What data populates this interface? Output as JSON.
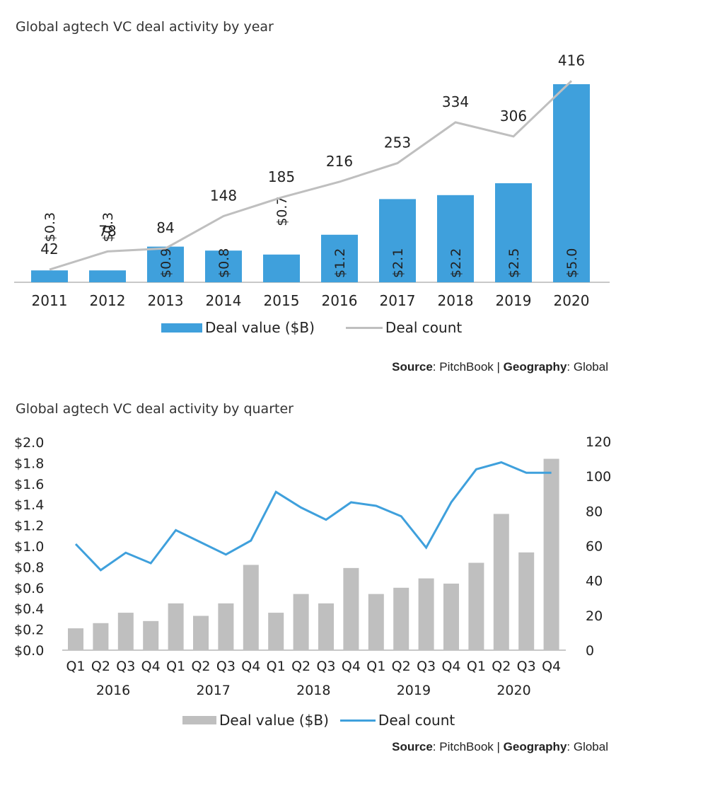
{
  "charts": {
    "annual": {
      "title": "Global agtech VC deal activity by year",
      "legend_value": "Deal value ($B)",
      "legend_count": "Deal count",
      "source_label": "Source",
      "source_value": ": PitchBook | ",
      "geo_label": "Geography",
      "geo_value": ": Global",
      "bar_color": "#3fa0dc",
      "line_color": "#bfbfbf"
    },
    "quarterly": {
      "title": "Global agtech VC deal activity by quarter",
      "legend_value": "Deal value ($B)",
      "legend_count": "Deal count",
      "source_label": "Source",
      "source_value": ": PitchBook | ",
      "geo_label": "Geography",
      "geo_value": ": Global",
      "bar_color": "#bfbfbf",
      "line_color": "#3fa0dc"
    }
  },
  "chart_data": [
    {
      "type": "bar",
      "title": "Global agtech VC deal activity by year",
      "categories": [
        "2011",
        "2012",
        "2013",
        "2014",
        "2015",
        "2016",
        "2017",
        "2018",
        "2019",
        "2020"
      ],
      "series": [
        {
          "name": "Deal value ($B)",
          "type": "bar",
          "values": [
            0.3,
            0.3,
            0.9,
            0.8,
            0.7,
            1.2,
            2.1,
            2.2,
            2.5,
            5.0
          ],
          "labels": [
            "$0.3",
            "$0.3",
            "$0.9",
            "$0.8",
            "$0.7",
            "$1.2",
            "$2.1",
            "$2.2",
            "$2.5",
            "$5.0"
          ]
        },
        {
          "name": "Deal count",
          "type": "line",
          "values": [
            42,
            78,
            84,
            148,
            185,
            216,
            253,
            334,
            306,
            416
          ]
        }
      ],
      "legend": "bottom"
    },
    {
      "type": "bar",
      "title": "Global agtech VC deal activity by quarter",
      "quarters": [
        "Q1",
        "Q2",
        "Q3",
        "Q4",
        "Q1",
        "Q2",
        "Q3",
        "Q4",
        "Q1",
        "Q2",
        "Q3",
        "Q4",
        "Q1",
        "Q2",
        "Q3",
        "Q4",
        "Q1",
        "Q2",
        "Q3",
        "Q4"
      ],
      "years": [
        "2016",
        "2017",
        "2018",
        "2019",
        "2020"
      ],
      "y_left_ticks": [
        "$0.0",
        "$0.2",
        "$0.4",
        "$0.6",
        "$0.8",
        "$1.0",
        "$1.2",
        "$1.4",
        "$1.6",
        "$1.8",
        "$2.0"
      ],
      "y_right_ticks": [
        "0",
        "20",
        "40",
        "60",
        "80",
        "100",
        "120"
      ],
      "ylim_left": [
        0,
        2.0
      ],
      "ylim_right": [
        0,
        120
      ],
      "series": [
        {
          "name": "Deal value ($B)",
          "type": "bar",
          "axis": "left",
          "values": [
            0.21,
            0.26,
            0.36,
            0.28,
            0.45,
            0.33,
            0.45,
            0.82,
            0.36,
            0.54,
            0.45,
            0.79,
            0.54,
            0.6,
            0.69,
            0.64,
            0.84,
            1.31,
            0.94,
            1.84
          ]
        },
        {
          "name": "Deal count",
          "type": "line",
          "axis": "right",
          "values": [
            61,
            46,
            56,
            50,
            69,
            62,
            55,
            63,
            91,
            82,
            75,
            85,
            83,
            77,
            59,
            85,
            104,
            108,
            102,
            102
          ]
        }
      ],
      "legend": "bottom"
    }
  ]
}
